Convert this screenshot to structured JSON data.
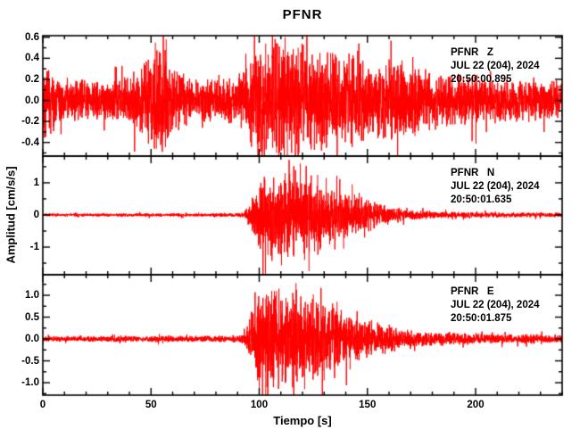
{
  "title": "PFNR",
  "xlabel": "Tiempo [s]",
  "ylabel": "Amplitud [cm/s/s]",
  "colors": {
    "trace": "#ff0000",
    "axis": "#000000",
    "background": "#ffffff",
    "text": "#000000"
  },
  "x_axis": {
    "range": [
      0,
      240
    ],
    "major_ticks": [
      {
        "v": 0,
        "label": "0"
      },
      {
        "v": 50,
        "label": "50"
      },
      {
        "v": 100,
        "label": "100"
      },
      {
        "v": 150,
        "label": "150"
      },
      {
        "v": 200,
        "label": "200"
      }
    ],
    "minor_step": 10
  },
  "chart_data": [
    {
      "type": "line",
      "station": "PFNR",
      "component": "Z",
      "units": "cm/s/s",
      "annotation_lines": [
        "PFNR   Z",
        "JUL 22 (204), 2024",
        "20:50:00.895"
      ],
      "x_range": [
        0,
        240
      ],
      "ylim": [
        -0.53,
        0.615
      ],
      "yticks": [
        {
          "v": 0.6,
          "label": "0.6"
        },
        {
          "v": 0.4,
          "label": "0.4"
        },
        {
          "v": 0.2,
          "label": "0.2"
        },
        {
          "v": 0.0,
          "label": "0.0"
        },
        {
          "v": -0.2,
          "label": "-0.2"
        },
        {
          "v": -0.4,
          "label": "-0.4"
        }
      ],
      "ytick_minor_step": 0.1,
      "envelope": [
        [
          0,
          0.28
        ],
        [
          2,
          0.3
        ],
        [
          4,
          0.22
        ],
        [
          8,
          0.16
        ],
        [
          15,
          0.17
        ],
        [
          22,
          0.15
        ],
        [
          30,
          0.15
        ],
        [
          36,
          0.17
        ],
        [
          40,
          0.18
        ],
        [
          44,
          0.25
        ],
        [
          48,
          0.33
        ],
        [
          52,
          0.4
        ],
        [
          55,
          0.44
        ],
        [
          58,
          0.34
        ],
        [
          62,
          0.25
        ],
        [
          66,
          0.18
        ],
        [
          72,
          0.16
        ],
        [
          80,
          0.18
        ],
        [
          86,
          0.18
        ],
        [
          90,
          0.2
        ],
        [
          94,
          0.26
        ],
        [
          98,
          0.4
        ],
        [
          102,
          0.46
        ],
        [
          106,
          0.49
        ],
        [
          110,
          0.52
        ],
        [
          114,
          0.47
        ],
        [
          118,
          0.45
        ],
        [
          122,
          0.43
        ],
        [
          126,
          0.4
        ],
        [
          130,
          0.38
        ],
        [
          135,
          0.35
        ],
        [
          140,
          0.33
        ],
        [
          145,
          0.34
        ],
        [
          150,
          0.31
        ],
        [
          155,
          0.29
        ],
        [
          160,
          0.27
        ],
        [
          164,
          0.31
        ],
        [
          168,
          0.29
        ],
        [
          172,
          0.26
        ],
        [
          176,
          0.24
        ],
        [
          180,
          0.22
        ],
        [
          185,
          0.21
        ],
        [
          190,
          0.2
        ],
        [
          195,
          0.19
        ],
        [
          200,
          0.18
        ],
        [
          210,
          0.17
        ],
        [
          220,
          0.16
        ],
        [
          230,
          0.15
        ],
        [
          240,
          0.16
        ]
      ],
      "spikes": [
        [
          52,
          0.55
        ],
        [
          52.5,
          -0.46
        ],
        [
          57,
          0.58
        ],
        [
          103,
          0.54
        ],
        [
          108,
          -0.5
        ],
        [
          112,
          0.6
        ],
        [
          113,
          -0.53
        ],
        [
          118,
          0.5
        ],
        [
          124,
          -0.47
        ],
        [
          133,
          0.45
        ],
        [
          166,
          0.38
        ],
        [
          172,
          -0.34
        ]
      ],
      "seed": 42
    },
    {
      "type": "line",
      "station": "PFNR",
      "component": "N",
      "units": "cm/s/s",
      "annotation_lines": [
        "PFNR   N",
        "JUL 22 (204), 2024",
        "20:50:01.635"
      ],
      "x_range": [
        0,
        240
      ],
      "ylim": [
        -1.86,
        1.83
      ],
      "yticks": [
        {
          "v": 1,
          "label": "1"
        },
        {
          "v": 0,
          "label": "0"
        },
        {
          "v": -1,
          "label": "-1"
        }
      ],
      "ytick_minor_step": 0.5,
      "envelope": [
        [
          0,
          0.04
        ],
        [
          20,
          0.04
        ],
        [
          40,
          0.045
        ],
        [
          60,
          0.04
        ],
        [
          80,
          0.045
        ],
        [
          90,
          0.05
        ],
        [
          93,
          0.07
        ],
        [
          95,
          0.28
        ],
        [
          97,
          0.55
        ],
        [
          99,
          0.78
        ],
        [
          101,
          0.92
        ],
        [
          103,
          1.0
        ],
        [
          106,
          1.08
        ],
        [
          109,
          1.02
        ],
        [
          112,
          1.12
        ],
        [
          115,
          1.05
        ],
        [
          118,
          1.12
        ],
        [
          121,
          1.0
        ],
        [
          124,
          0.92
        ],
        [
          127,
          0.85
        ],
        [
          130,
          0.8
        ],
        [
          133,
          0.75
        ],
        [
          136,
          0.67
        ],
        [
          140,
          0.57
        ],
        [
          144,
          0.5
        ],
        [
          148,
          0.43
        ],
        [
          152,
          0.36
        ],
        [
          156,
          0.29
        ],
        [
          160,
          0.23
        ],
        [
          164,
          0.18
        ],
        [
          168,
          0.14
        ],
        [
          172,
          0.12
        ],
        [
          176,
          0.1
        ],
        [
          180,
          0.09
        ],
        [
          190,
          0.08
        ],
        [
          200,
          0.07
        ],
        [
          210,
          0.065
        ],
        [
          220,
          0.06
        ],
        [
          230,
          0.06
        ],
        [
          240,
          0.06
        ]
      ],
      "spikes": [
        [
          104,
          -1.25
        ],
        [
          112,
          1.3
        ],
        [
          116,
          -1.3
        ],
        [
          119,
          1.6
        ],
        [
          121,
          -1.4
        ],
        [
          123,
          -1.75
        ],
        [
          127,
          1.25
        ],
        [
          131,
          1.15
        ],
        [
          139,
          -1.05
        ],
        [
          143,
          0.95
        ]
      ],
      "seed": 7
    },
    {
      "type": "line",
      "station": "PFNR",
      "component": "E",
      "units": "cm/s/s",
      "annotation_lines": [
        "PFNR   E",
        "JUL 22 (204), 2024",
        "20:50:01.875"
      ],
      "x_range": [
        0,
        240
      ],
      "ylim": [
        -1.285,
        1.47
      ],
      "yticks": [
        {
          "v": 1.0,
          "label": "1.0"
        },
        {
          "v": 0.5,
          "label": "0.5"
        },
        {
          "v": 0.0,
          "label": "0.0"
        },
        {
          "v": -0.5,
          "label": "-0.5"
        },
        {
          "v": -1.0,
          "label": "-1.0"
        }
      ],
      "ytick_minor_step": 0.25,
      "envelope": [
        [
          0,
          0.05
        ],
        [
          20,
          0.05
        ],
        [
          40,
          0.055
        ],
        [
          60,
          0.06
        ],
        [
          80,
          0.06
        ],
        [
          90,
          0.065
        ],
        [
          93,
          0.09
        ],
        [
          95,
          0.32
        ],
        [
          97,
          0.58
        ],
        [
          99,
          0.75
        ],
        [
          101,
          0.85
        ],
        [
          103,
          0.95
        ],
        [
          106,
          1.0
        ],
        [
          109,
          0.92
        ],
        [
          112,
          0.96
        ],
        [
          115,
          0.88
        ],
        [
          118,
          0.92
        ],
        [
          121,
          0.82
        ],
        [
          124,
          0.76
        ],
        [
          127,
          0.72
        ],
        [
          130,
          0.66
        ],
        [
          134,
          0.58
        ],
        [
          138,
          0.52
        ],
        [
          142,
          0.46
        ],
        [
          146,
          0.4
        ],
        [
          150,
          0.36
        ],
        [
          154,
          0.31
        ],
        [
          158,
          0.27
        ],
        [
          162,
          0.23
        ],
        [
          166,
          0.19
        ],
        [
          170,
          0.17
        ],
        [
          175,
          0.15
        ],
        [
          180,
          0.13
        ],
        [
          190,
          0.11
        ],
        [
          200,
          0.1
        ],
        [
          210,
          0.09
        ],
        [
          220,
          0.085
        ],
        [
          230,
          0.08
        ],
        [
          240,
          0.08
        ]
      ],
      "spikes": [
        [
          100,
          -1.12
        ],
        [
          103,
          -1.3
        ],
        [
          108,
          1.1
        ],
        [
          112,
          -1.0
        ],
        [
          117,
          1.28
        ],
        [
          121,
          -1.15
        ],
        [
          125,
          1.02
        ],
        [
          130,
          -0.95
        ],
        [
          136,
          0.85
        ],
        [
          142,
          -0.7
        ]
      ],
      "seed": 13
    }
  ]
}
